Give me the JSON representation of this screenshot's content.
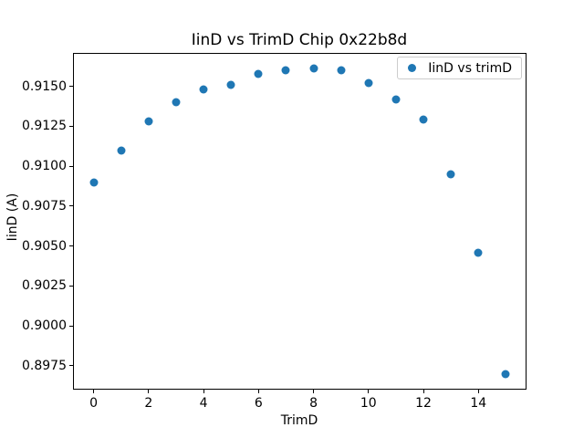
{
  "chart_data": {
    "type": "scatter",
    "title": "IinD vs TrimD Chip 0x22b8d",
    "xlabel": "TrimD",
    "ylabel": "IinD (A)",
    "x": [
      0,
      1,
      2,
      3,
      4,
      5,
      6,
      7,
      8,
      9,
      10,
      11,
      12,
      13,
      14,
      15
    ],
    "series": [
      {
        "name": "IinD vs trimD",
        "color": "#1f77b4",
        "marker": "circle",
        "values": [
          0.909,
          0.911,
          0.9128,
          0.914,
          0.9148,
          0.9151,
          0.9158,
          0.916,
          0.9161,
          0.916,
          0.9152,
          0.9142,
          0.9129,
          0.9095,
          0.9046,
          0.897
        ]
      }
    ],
    "xlim": [
      -0.75,
      15.75
    ],
    "ylim": [
      0.896,
      0.9171
    ],
    "xticks": {
      "values": [
        0,
        2,
        4,
        6,
        8,
        10,
        12,
        14
      ],
      "labels": [
        "0",
        "2",
        "4",
        "6",
        "8",
        "10",
        "12",
        "14"
      ]
    },
    "yticks": {
      "values": [
        0.8975,
        0.9,
        0.9025,
        0.905,
        0.9075,
        0.91,
        0.9125,
        0.915
      ],
      "labels": [
        "0.8975",
        "0.9000",
        "0.9025",
        "0.9050",
        "0.9075",
        "0.9100",
        "0.9125",
        "0.9150"
      ]
    },
    "legend": {
      "position": "upper right",
      "frame_color": "#cccccc",
      "entries": [
        {
          "label": "IinD vs trimD",
          "marker": "circle",
          "color": "#1f77b4"
        }
      ]
    },
    "grid": false,
    "background": "#ffffff",
    "axis_color": "#000000",
    "text_color": "#000000"
  }
}
